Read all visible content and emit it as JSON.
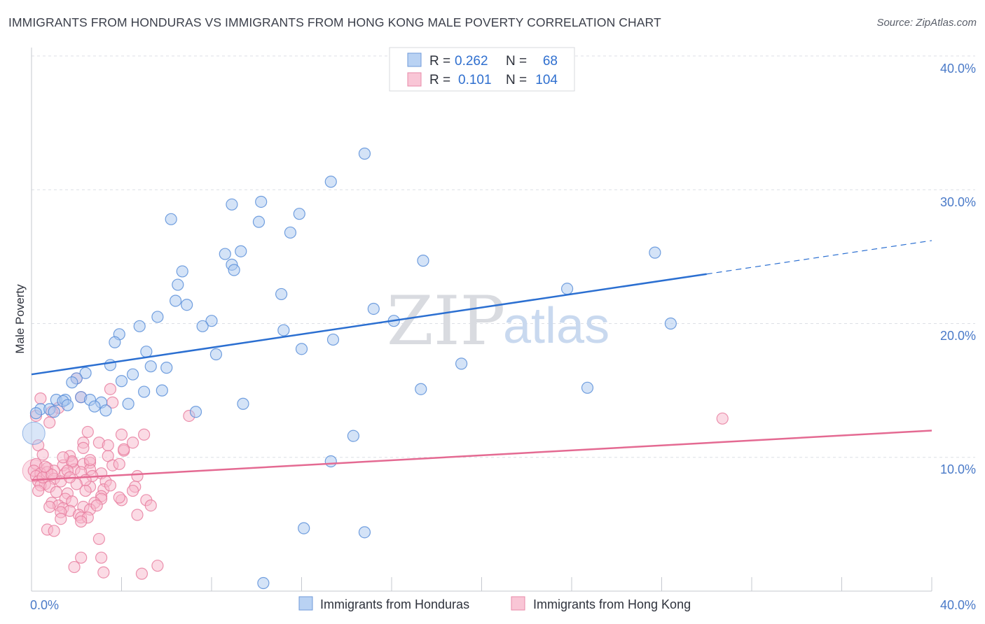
{
  "title": "IMMIGRANTS FROM HONDURAS VS IMMIGRANTS FROM HONG KONG MALE POVERTY CORRELATION CHART",
  "source": "Source: ZipAtlas.com",
  "watermark": {
    "zip": "ZIP",
    "atlas": "atlas"
  },
  "colors": {
    "blue_fill": "#aac8f0",
    "blue_stroke": "#5b8fd9",
    "blue_line": "#2b6fd1",
    "pink_fill": "#f7b8cc",
    "pink_stroke": "#e77fa0",
    "pink_line": "#e46a92",
    "grid": "#dcdfe5",
    "axis": "#c5c8cf"
  },
  "legend": {
    "rows": [
      {
        "r_label": "R =",
        "r_value": "0.262",
        "n_label": "N =",
        "n_value": "68"
      },
      {
        "r_label": "R =",
        "r_value": "0.101",
        "n_label": "N =",
        "n_value": "104"
      }
    ]
  },
  "bottom_legend": [
    "Immigrants from Honduras",
    "Immigrants from Hong Kong"
  ],
  "chart_data": {
    "type": "scatter",
    "title": "IMMIGRANTS FROM HONDURAS VS IMMIGRANTS FROM HONG KONG MALE POVERTY CORRELATION CHART",
    "xlabel": "",
    "ylabel": "Male Poverty",
    "xlim": [
      0,
      40
    ],
    "ylim": [
      0,
      40
    ],
    "x_tick_labels": [
      "0.0%",
      "40.0%"
    ],
    "y_ticks": [
      10,
      20,
      30,
      40
    ],
    "y_tick_labels": [
      "10.0%",
      "20.0%",
      "30.0%",
      "40.0%"
    ],
    "series": [
      {
        "name": "Immigrants from Honduras",
        "color": "blue",
        "R": 0.262,
        "N": 68,
        "trend": {
          "x0": 0,
          "y0": 16.2,
          "x1": 30,
          "y1": 23.7,
          "dash_x1": 40,
          "dash_y1": 26.2
        },
        "points": [
          [
            14.8,
            32.7
          ],
          [
            13.3,
            30.6
          ],
          [
            10.2,
            29.1
          ],
          [
            8.9,
            28.9
          ],
          [
            11.9,
            28.2
          ],
          [
            6.2,
            27.8
          ],
          [
            10.1,
            27.6
          ],
          [
            11.5,
            26.8
          ],
          [
            9.3,
            25.4
          ],
          [
            8.6,
            25.2
          ],
          [
            27.7,
            25.3
          ],
          [
            17.4,
            24.7
          ],
          [
            8.9,
            24.4
          ],
          [
            9.0,
            24.0
          ],
          [
            6.7,
            23.9
          ],
          [
            6.5,
            22.9
          ],
          [
            23.8,
            22.6
          ],
          [
            11.1,
            22.2
          ],
          [
            6.4,
            21.7
          ],
          [
            6.9,
            21.4
          ],
          [
            15.2,
            21.1
          ],
          [
            5.6,
            20.5
          ],
          [
            8.0,
            20.2
          ],
          [
            28.4,
            20.0
          ],
          [
            16.1,
            20.2
          ],
          [
            7.6,
            19.8
          ],
          [
            4.8,
            19.8
          ],
          [
            11.2,
            19.5
          ],
          [
            3.9,
            19.2
          ],
          [
            3.7,
            18.6
          ],
          [
            13.4,
            18.8
          ],
          [
            12.0,
            18.1
          ],
          [
            5.1,
            17.9
          ],
          [
            8.2,
            17.7
          ],
          [
            19.1,
            17.0
          ],
          [
            3.5,
            16.9
          ],
          [
            5.3,
            16.8
          ],
          [
            6.0,
            16.7
          ],
          [
            2.4,
            16.3
          ],
          [
            4.5,
            16.2
          ],
          [
            4.0,
            15.7
          ],
          [
            2.0,
            15.9
          ],
          [
            1.8,
            15.6
          ],
          [
            17.3,
            15.1
          ],
          [
            24.7,
            15.2
          ],
          [
            5.0,
            14.9
          ],
          [
            5.8,
            15.0
          ],
          [
            2.2,
            14.5
          ],
          [
            1.1,
            14.3
          ],
          [
            1.5,
            14.3
          ],
          [
            2.6,
            14.3
          ],
          [
            1.4,
            14.2
          ],
          [
            3.1,
            14.1
          ],
          [
            9.4,
            14.0
          ],
          [
            4.3,
            14.0
          ],
          [
            1.6,
            13.9
          ],
          [
            2.8,
            13.8
          ],
          [
            0.4,
            13.6
          ],
          [
            0.8,
            13.6
          ],
          [
            1.0,
            13.4
          ],
          [
            3.3,
            13.5
          ],
          [
            7.3,
            13.4
          ],
          [
            0.2,
            13.3
          ],
          [
            14.3,
            11.6
          ],
          [
            13.3,
            9.7
          ],
          [
            12.1,
            4.7
          ],
          [
            14.8,
            4.4
          ],
          [
            10.3,
            0.6
          ]
        ],
        "large_points": [
          [
            0.1,
            11.8
          ]
        ]
      },
      {
        "name": "Immigrants from Hong Kong",
        "color": "pink",
        "R": 0.101,
        "N": 104,
        "trend": {
          "x0": 0,
          "y0": 8.3,
          "x1": 40,
          "y1": 12.0
        },
        "points": [
          [
            2.0,
            15.9
          ],
          [
            3.5,
            15.1
          ],
          [
            0.4,
            14.4
          ],
          [
            2.2,
            14.5
          ],
          [
            3.6,
            14.1
          ],
          [
            7.0,
            13.1
          ],
          [
            1.2,
            13.7
          ],
          [
            0.9,
            13.4
          ],
          [
            0.2,
            13.1
          ],
          [
            0.8,
            12.6
          ],
          [
            30.7,
            12.9
          ],
          [
            2.5,
            11.9
          ],
          [
            4.0,
            11.7
          ],
          [
            5.0,
            11.7
          ],
          [
            2.3,
            11.1
          ],
          [
            3.0,
            11.1
          ],
          [
            4.5,
            11.1
          ],
          [
            0.3,
            10.9
          ],
          [
            2.3,
            10.7
          ],
          [
            4.1,
            10.5
          ],
          [
            0.5,
            10.2
          ],
          [
            1.7,
            10.1
          ],
          [
            3.4,
            10.1
          ],
          [
            1.8,
            9.6
          ],
          [
            2.6,
            9.6
          ],
          [
            0.2,
            9.5
          ],
          [
            1.4,
            9.4
          ],
          [
            2.3,
            9.5
          ],
          [
            0.7,
            9.2
          ],
          [
            3.6,
            9.4
          ],
          [
            0.1,
            9.0
          ],
          [
            1.0,
            9.0
          ],
          [
            1.9,
            9.1
          ],
          [
            2.6,
            9.1
          ],
          [
            0.4,
            8.8
          ],
          [
            0.7,
            8.9
          ],
          [
            1.5,
            8.8
          ],
          [
            2.2,
            8.9
          ],
          [
            3.1,
            8.8
          ],
          [
            0.2,
            8.6
          ],
          [
            1.0,
            8.4
          ],
          [
            2.7,
            8.6
          ],
          [
            4.7,
            8.6
          ],
          [
            0.3,
            8.2
          ],
          [
            0.6,
            8.0
          ],
          [
            1.3,
            8.2
          ],
          [
            3.3,
            8.2
          ],
          [
            0.4,
            7.9
          ],
          [
            0.8,
            7.8
          ],
          [
            2.6,
            7.8
          ],
          [
            4.6,
            7.8
          ],
          [
            3.2,
            7.6
          ],
          [
            0.3,
            7.5
          ],
          [
            2.4,
            7.5
          ],
          [
            1.6,
            7.3
          ],
          [
            4.5,
            7.5
          ],
          [
            3.1,
            7.1
          ],
          [
            1.5,
            6.9
          ],
          [
            3.1,
            6.9
          ],
          [
            5.1,
            6.8
          ],
          [
            0.9,
            6.6
          ],
          [
            1.8,
            6.7
          ],
          [
            2.8,
            6.6
          ],
          [
            1.2,
            6.4
          ],
          [
            0.8,
            6.3
          ],
          [
            2.3,
            6.3
          ],
          [
            5.3,
            6.4
          ],
          [
            1.4,
            6.2
          ],
          [
            2.6,
            6.1
          ],
          [
            1.7,
            6.0
          ],
          [
            1.3,
            5.9
          ],
          [
            2.1,
            5.7
          ],
          [
            4.7,
            5.7
          ],
          [
            2.2,
            5.5
          ],
          [
            2.5,
            5.5
          ],
          [
            1.3,
            5.4
          ],
          [
            2.2,
            5.2
          ],
          [
            0.7,
            4.6
          ],
          [
            1.0,
            4.5
          ],
          [
            3.0,
            3.9
          ],
          [
            2.2,
            2.5
          ],
          [
            3.1,
            2.5
          ],
          [
            1.9,
            1.8
          ],
          [
            5.6,
            1.9
          ],
          [
            3.2,
            1.4
          ],
          [
            4.9,
            1.3
          ],
          [
            4.1,
            10.6
          ],
          [
            1.8,
            9.7
          ],
          [
            3.9,
            9.5
          ],
          [
            2.4,
            8.3
          ],
          [
            3.5,
            7.9
          ],
          [
            1.1,
            7.4
          ],
          [
            0.5,
            8.5
          ],
          [
            1.6,
            9.0
          ],
          [
            2.9,
            6.4
          ],
          [
            4.0,
            6.8
          ],
          [
            0.9,
            8.7
          ],
          [
            2.0,
            8.0
          ],
          [
            1.4,
            10.0
          ],
          [
            3.4,
            10.9
          ],
          [
            2.6,
            9.8
          ],
          [
            0.6,
            9.3
          ],
          [
            1.7,
            8.5
          ],
          [
            3.9,
            7.0
          ]
        ],
        "large_points": [
          [
            0.1,
            9.0
          ]
        ]
      }
    ]
  }
}
